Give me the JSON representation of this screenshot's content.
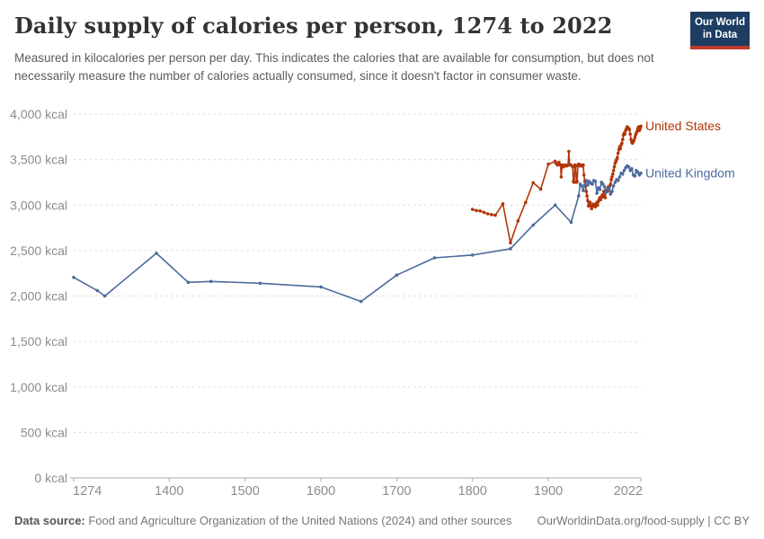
{
  "header": {
    "title": "Daily supply of calories per person, 1274 to 2022",
    "subtitle": "Measured in kilocalories per person per day. This indicates the calories that are available for consumption, but does not necessarily measure the number of calories actually consumed, since it doesn't factor in consumer waste.",
    "logo": {
      "line1": "Our World",
      "line2": "in Data"
    }
  },
  "footer": {
    "datasource_label": "Data source:",
    "datasource_text": " Food and Agriculture Organization of the United Nations (2024) and other sources",
    "link_text": "OurWorldinData.org/food-supply | CC BY"
  },
  "colors": {
    "united_states": "#b13507",
    "united_kingdom": "#4c6a9c",
    "gridline": "#dcdcdc",
    "axis": "#a8a8a8",
    "tick_label": "#8c8c8c",
    "logo_navy": "#1d3d63",
    "logo_red": "#c0392b"
  },
  "chart_data": {
    "type": "line",
    "title": "Daily supply of calories per person, 1274 to 2022",
    "xlabel": "",
    "ylabel": "",
    "unit_suffix": " kcal",
    "xlim": [
      1274,
      2022
    ],
    "ylim": [
      0,
      4000
    ],
    "grid": "dashed-horizontal",
    "legend_position": "end-of-line",
    "yticks": [
      0,
      500,
      1000,
      1500,
      2000,
      2500,
      3000,
      3500,
      4000
    ],
    "xticks": [
      1274,
      1400,
      1500,
      1600,
      1700,
      1800,
      1900,
      2022
    ],
    "series": [
      {
        "name": "United States",
        "color": "#b13507",
        "points": [
          [
            1800,
            2952
          ],
          [
            1805,
            2940
          ],
          [
            1810,
            2935
          ],
          [
            1815,
            2920
          ],
          [
            1820,
            2904
          ],
          [
            1825,
            2895
          ],
          [
            1830,
            2888
          ],
          [
            1840,
            3013
          ],
          [
            1850,
            2585
          ],
          [
            1860,
            2826
          ],
          [
            1870,
            3029
          ],
          [
            1880,
            3245
          ],
          [
            1890,
            3174
          ],
          [
            1900,
            3450
          ],
          [
            1909,
            3480
          ],
          [
            1910,
            3460
          ],
          [
            1912,
            3440
          ],
          [
            1914,
            3470
          ],
          [
            1916,
            3440
          ],
          [
            1917,
            3310
          ],
          [
            1918,
            3440
          ],
          [
            1920,
            3420
          ],
          [
            1922,
            3440
          ],
          [
            1924,
            3430
          ],
          [
            1926,
            3440
          ],
          [
            1927,
            3590
          ],
          [
            1928,
            3440
          ],
          [
            1930,
            3440
          ],
          [
            1932,
            3420
          ],
          [
            1933,
            3260
          ],
          [
            1934,
            3250
          ],
          [
            1935,
            3440
          ],
          [
            1936,
            3430
          ],
          [
            1937,
            3250
          ],
          [
            1938,
            3260
          ],
          [
            1939,
            3440
          ],
          [
            1940,
            3450
          ],
          [
            1941,
            3440
          ],
          [
            1942,
            3430
          ],
          [
            1944,
            3440
          ],
          [
            1945,
            3430
          ],
          [
            1946,
            3440
          ],
          [
            1947,
            3330
          ],
          [
            1948,
            3260
          ],
          [
            1949,
            3210
          ],
          [
            1950,
            3150
          ],
          [
            1951,
            3100
          ],
          [
            1952,
            3050
          ],
          [
            1953,
            2990
          ],
          [
            1954,
            3010
          ],
          [
            1955,
            3030
          ],
          [
            1956,
            2990
          ],
          [
            1957,
            2960
          ],
          [
            1958,
            2990
          ],
          [
            1959,
            3010
          ],
          [
            1960,
            2990
          ],
          [
            1961,
            3000
          ],
          [
            1962,
            2980
          ],
          [
            1963,
            3010
          ],
          [
            1964,
            3030
          ],
          [
            1965,
            3000
          ],
          [
            1966,
            3040
          ],
          [
            1967,
            3060
          ],
          [
            1968,
            3080
          ],
          [
            1969,
            3060
          ],
          [
            1970,
            3090
          ],
          [
            1971,
            3110
          ],
          [
            1972,
            3090
          ],
          [
            1973,
            3150
          ],
          [
            1974,
            3090
          ],
          [
            1975,
            3080
          ],
          [
            1976,
            3160
          ],
          [
            1977,
            3170
          ],
          [
            1978,
            3150
          ],
          [
            1979,
            3200
          ],
          [
            1980,
            3180
          ],
          [
            1981,
            3210
          ],
          [
            1982,
            3230
          ],
          [
            1983,
            3280
          ],
          [
            1984,
            3310
          ],
          [
            1985,
            3340
          ],
          [
            1986,
            3380
          ],
          [
            1987,
            3420
          ],
          [
            1988,
            3460
          ],
          [
            1989,
            3480
          ],
          [
            1990,
            3500
          ],
          [
            1991,
            3520
          ],
          [
            1992,
            3570
          ],
          [
            1993,
            3610
          ],
          [
            1994,
            3640
          ],
          [
            1995,
            3620
          ],
          [
            1996,
            3660
          ],
          [
            1997,
            3680
          ],
          [
            1998,
            3720
          ],
          [
            1999,
            3770
          ],
          [
            2000,
            3790
          ],
          [
            2001,
            3780
          ],
          [
            2002,
            3820
          ],
          [
            2003,
            3840
          ],
          [
            2004,
            3860
          ],
          [
            2005,
            3850
          ],
          [
            2006,
            3840
          ],
          [
            2007,
            3830
          ],
          [
            2008,
            3780
          ],
          [
            2009,
            3720
          ],
          [
            2010,
            3690
          ],
          [
            2011,
            3680
          ],
          [
            2012,
            3700
          ],
          [
            2013,
            3710
          ],
          [
            2014,
            3740
          ],
          [
            2015,
            3770
          ],
          [
            2016,
            3790
          ],
          [
            2017,
            3810
          ],
          [
            2018,
            3840
          ],
          [
            2019,
            3860
          ],
          [
            2020,
            3820
          ],
          [
            2021,
            3840
          ],
          [
            2022,
            3868
          ]
        ]
      },
      {
        "name": "United Kingdom",
        "color": "#4c6a9c",
        "points": [
          [
            1274,
            2204
          ],
          [
            1305,
            2060
          ],
          [
            1315,
            2000
          ],
          [
            1383,
            2470
          ],
          [
            1425,
            2150
          ],
          [
            1455,
            2160
          ],
          [
            1520,
            2140
          ],
          [
            1600,
            2100
          ],
          [
            1653,
            1940
          ],
          [
            1700,
            2230
          ],
          [
            1750,
            2420
          ],
          [
            1800,
            2450
          ],
          [
            1850,
            2520
          ],
          [
            1880,
            2780
          ],
          [
            1909,
            3000
          ],
          [
            1930,
            2810
          ],
          [
            1940,
            3100
          ],
          [
            1942,
            3230
          ],
          [
            1944,
            3210
          ],
          [
            1946,
            3160
          ],
          [
            1948,
            3220
          ],
          [
            1950,
            3270
          ],
          [
            1952,
            3220
          ],
          [
            1954,
            3260
          ],
          [
            1956,
            3240
          ],
          [
            1958,
            3230
          ],
          [
            1960,
            3270
          ],
          [
            1962,
            3260
          ],
          [
            1964,
            3130
          ],
          [
            1966,
            3190
          ],
          [
            1968,
            3170
          ],
          [
            1970,
            3250
          ],
          [
            1972,
            3230
          ],
          [
            1974,
            3200
          ],
          [
            1976,
            3140
          ],
          [
            1978,
            3170
          ],
          [
            1980,
            3190
          ],
          [
            1982,
            3120
          ],
          [
            1984,
            3150
          ],
          [
            1986,
            3210
          ],
          [
            1988,
            3250
          ],
          [
            1990,
            3280
          ],
          [
            1992,
            3270
          ],
          [
            1994,
            3310
          ],
          [
            1996,
            3350
          ],
          [
            1998,
            3340
          ],
          [
            2000,
            3380
          ],
          [
            2002,
            3410
          ],
          [
            2004,
            3430
          ],
          [
            2006,
            3420
          ],
          [
            2008,
            3380
          ],
          [
            2010,
            3400
          ],
          [
            2012,
            3330
          ],
          [
            2014,
            3320
          ],
          [
            2016,
            3380
          ],
          [
            2018,
            3360
          ],
          [
            2020,
            3330
          ],
          [
            2022,
            3350
          ]
        ]
      }
    ]
  }
}
